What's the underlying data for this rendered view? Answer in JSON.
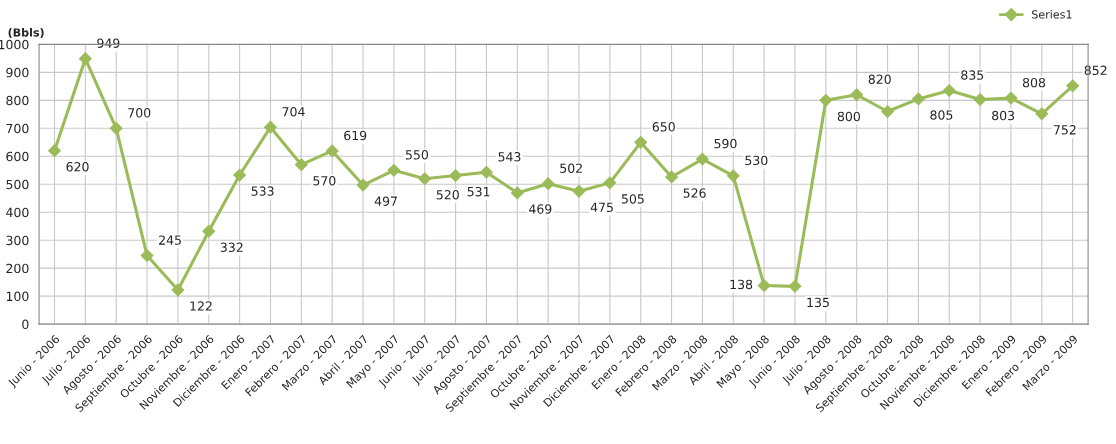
{
  "chart_data": {
    "type": "line",
    "ylabel": "(Bbls)",
    "categories": [
      "Junio - 2006",
      "Julio - 2006",
      "Agosto - 2006",
      "Septiembre - 2006",
      "Octubre - 2006",
      "Noviembre - 2006",
      "Diciembre - 2006",
      "Enero - 2007",
      "Febrero - 2007",
      "Marzo - 2007",
      "Abril - 2007",
      "Mayo - 2007",
      "Junio - 2007",
      "Julio - 2007",
      "Agosto - 2007",
      "Septiembre - 2007",
      "Octubre - 2007",
      "Noviembre - 2007",
      "Diciembre - 2007",
      "Enero - 2008",
      "Febrero - 2008",
      "Marzo - 2008",
      "Abril - 2008",
      "Mayo - 2008",
      "Junio - 2008",
      "Julio - 2008",
      "Agosto - 2008",
      "Septiembre - 2008",
      "Octubre - 2008",
      "Noviembre - 2008",
      "Diciembre - 2008",
      "Enero - 2009",
      "Febrero - 2009",
      "Marzo - 2009"
    ],
    "series": [
      {
        "name": "Series1",
        "color": "#9bbb59",
        "values": [
          620,
          949,
          700,
          245,
          122,
          332,
          533,
          704,
          570,
          619,
          497,
          550,
          520,
          531,
          543,
          469,
          502,
          475,
          505,
          650,
          526,
          590,
          530,
          138,
          135,
          800,
          820,
          760,
          805,
          835,
          803,
          808,
          752,
          852
        ],
        "value_labels": [
          "620",
          "949",
          "700",
          "245",
          "122",
          "332",
          "533",
          "704",
          "570",
          "619",
          "497",
          "550",
          "520",
          "531",
          "543",
          "469",
          "502",
          "475",
          "505",
          "650",
          "526",
          "590",
          "530",
          "138",
          "135",
          "800",
          "820",
          null,
          "805",
          "835",
          "803",
          "808",
          "752",
          "852"
        ]
      }
    ],
    "ylim": [
      0,
      1000
    ],
    "yticks": [
      0,
      100,
      200,
      300,
      400,
      500,
      600,
      700,
      800,
      900,
      1000
    ],
    "grid": true,
    "legend": "top right",
    "marker": "diamond",
    "line_style": "solid"
  }
}
